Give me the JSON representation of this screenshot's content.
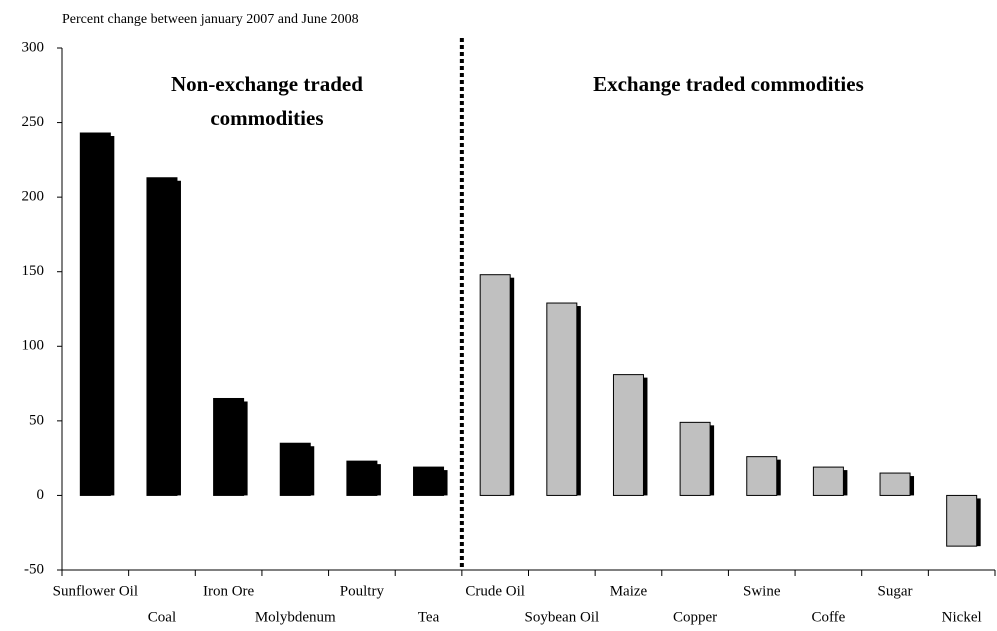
{
  "chart_data": {
    "type": "bar",
    "subtitle": "Percent change between january 2007 and June 2008",
    "annotations": [
      {
        "lines": [
          "Non-exchange traded",
          "commodities"
        ]
      },
      {
        "lines": [
          "Exchange traded commodities"
        ]
      }
    ],
    "categories": [
      "Sunflower Oil",
      "Coal",
      "Iron Ore",
      "Molybdenum",
      "Poultry",
      "Tea",
      "Crude Oil",
      "Soybean Oil",
      "Maize",
      "Copper",
      "Swine",
      "Coffe",
      "Sugar",
      "Nickel"
    ],
    "values": [
      243,
      213,
      65,
      35,
      23,
      19,
      148,
      129,
      81,
      49,
      26,
      19,
      15,
      -34
    ],
    "colors": [
      "#000000",
      "#000000",
      "#000000",
      "#000000",
      "#000000",
      "#000000",
      "#c0c0c0",
      "#c0c0c0",
      "#c0c0c0",
      "#c0c0c0",
      "#c0c0c0",
      "#c0c0c0",
      "#c0c0c0",
      "#c0c0c0"
    ],
    "ylim": [
      -50,
      300
    ],
    "yticks": [
      -50,
      0,
      50,
      100,
      150,
      200,
      250,
      300
    ]
  }
}
